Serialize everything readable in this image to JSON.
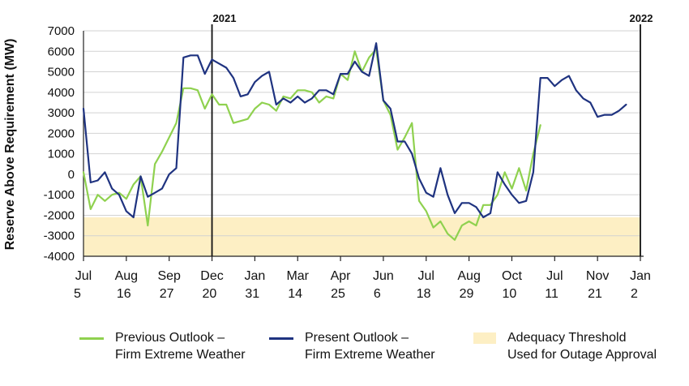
{
  "chart_data": {
    "type": "line",
    "ylabel": "Reserve Above Requirement (MW)",
    "ylim": [
      -4000,
      7000
    ],
    "yticks": [
      7000,
      6000,
      5000,
      4000,
      3000,
      2000,
      1000,
      0,
      -1000,
      -2000,
      -3000,
      -4000
    ],
    "xticks": [
      {
        "month": "Jul",
        "day": "5",
        "x": 0
      },
      {
        "month": "Aug",
        "day": "16",
        "x": 6
      },
      {
        "month": "Sep",
        "day": "27",
        "x": 12
      },
      {
        "month": "Dec",
        "day": "20",
        "x": 18
      },
      {
        "month": "Jan",
        "day": "31",
        "x": 24
      },
      {
        "month": "Mar",
        "day": "14",
        "x": 30
      },
      {
        "month": "Apr",
        "day": "25",
        "x": 36
      },
      {
        "month": "Jun",
        "day": "6",
        "x": 42
      },
      {
        "month": "Jul",
        "day": "18",
        "x": 48
      },
      {
        "month": "Aug",
        "day": "29",
        "x": 54
      },
      {
        "month": "Oct",
        "day": "10",
        "x": 60
      },
      {
        "month": "Jul",
        "day": "11",
        "x": 66
      },
      {
        "month": "Nov",
        "day": "21",
        "x": 72
      },
      {
        "month": "Jan",
        "day": "2",
        "x": 78
      }
    ],
    "xlim": [
      0,
      78
    ],
    "year_markers": [
      {
        "label": "2021",
        "x": 18
      },
      {
        "label": "2022",
        "x": 78
      }
    ],
    "threshold_band": {
      "name": "Adequacy Threshold Used for Outage Approval",
      "from": -4000,
      "to": -2100,
      "color": "#fdefc4"
    },
    "series": [
      {
        "name": "Previous Outlook – Firm Extreme Weather",
        "color": "#8fd14f",
        "x": [
          0,
          1,
          2,
          3,
          4,
          5,
          6,
          7,
          8,
          9,
          10,
          11,
          12,
          13,
          14,
          15,
          16,
          17,
          18,
          19,
          20,
          21,
          22,
          23,
          24,
          25,
          26,
          27,
          28,
          29,
          30,
          31,
          32,
          33,
          34,
          35,
          36,
          37,
          38,
          39,
          40,
          41,
          42,
          43,
          44,
          45,
          46,
          47,
          48,
          49,
          50,
          51,
          52,
          53,
          54,
          55,
          56,
          57,
          58,
          59,
          60,
          61,
          62,
          63,
          64
        ],
        "values": [
          100,
          -1700,
          -1000,
          -1300,
          -1000,
          -900,
          -1200,
          -500,
          -100,
          -2500,
          500,
          1100,
          1800,
          2500,
          4200,
          4200,
          4100,
          3200,
          3900,
          3400,
          3400,
          2500,
          2600,
          2700,
          3200,
          3500,
          3400,
          3100,
          3800,
          3700,
          4100,
          4100,
          4000,
          3500,
          3800,
          3700,
          4900,
          4600,
          6000,
          5000,
          5700,
          6100,
          3600,
          2900,
          1200,
          1800,
          2500,
          -1300,
          -1800,
          -2600,
          -2300,
          -2900,
          -3200,
          -2500,
          -2300,
          -2500,
          -1500,
          -1500,
          -1000,
          100,
          -700,
          300,
          -800,
          1000,
          2400
        ]
      },
      {
        "name": "Present Outlook – Firm Extreme Weather",
        "color": "#1f3380",
        "x": [
          0,
          1,
          2,
          3,
          4,
          5,
          6,
          7,
          8,
          9,
          10,
          11,
          12,
          13,
          14,
          15,
          16,
          17,
          18,
          19,
          20,
          21,
          22,
          23,
          24,
          25,
          26,
          27,
          28,
          29,
          30,
          31,
          32,
          33,
          34,
          35,
          36,
          37,
          38,
          39,
          40,
          41,
          42,
          43,
          44,
          45,
          46,
          47,
          48,
          49,
          50,
          51,
          52,
          53,
          54,
          55,
          56,
          57,
          58,
          59,
          60,
          61,
          62,
          63,
          64,
          65,
          66,
          67,
          68,
          69,
          70,
          71,
          72,
          73,
          74,
          75,
          76,
          77,
          78
        ],
        "values": [
          3200,
          -400,
          -300,
          100,
          -700,
          -1000,
          -1800,
          -2100,
          -100,
          -1100,
          -900,
          -700,
          0,
          300,
          5700,
          5800,
          5800,
          4900,
          5600,
          5400,
          5200,
          4700,
          3800,
          3900,
          4500,
          4800,
          5000,
          3400,
          3700,
          3500,
          3800,
          3500,
          3700,
          4100,
          4100,
          3900,
          4900,
          4900,
          5500,
          5000,
          4800,
          6400,
          3600,
          3200,
          1600,
          1600,
          1000,
          -200,
          -900,
          -1100,
          300,
          -1000,
          -1900,
          -1400,
          -1400,
          -1600,
          -2100,
          -1900,
          100,
          -500,
          -1000,
          -1400,
          -1300,
          100,
          4700,
          4700,
          4300,
          4600,
          4800,
          4100,
          3700,
          3500,
          2800,
          2900,
          2900,
          3100,
          3400,
          null,
          null
        ]
      }
    ],
    "legend": [
      {
        "line1": "Previous Outlook –",
        "line2": "Firm Extreme Weather",
        "color": "#8fd14f",
        "kind": "line"
      },
      {
        "line1": "Present Outlook –",
        "line2": "Firm Extreme Weather",
        "color": "#1f3380",
        "kind": "line"
      },
      {
        "line1": "Adequacy Threshold",
        "line2": "Used for Outage Approval",
        "color": "#fdefc4",
        "kind": "box"
      }
    ]
  }
}
